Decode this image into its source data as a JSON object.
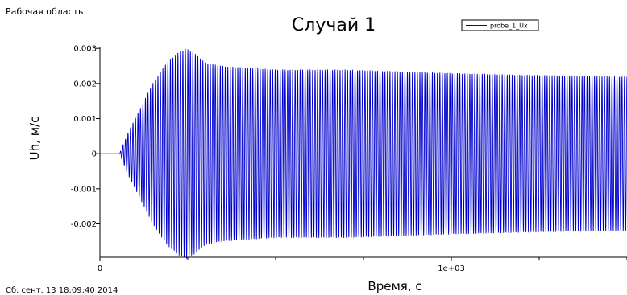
{
  "workspace_label": "Рабочая область",
  "timestamp": "Сб. сент. 13 18:09:40 2014",
  "colors": {
    "series": "#0000cc",
    "axis": "#000000"
  },
  "chart_data": {
    "type": "line",
    "title": "Случай 1",
    "xlabel": "Время, с",
    "ylabel": "Uh, м/с",
    "xlim": [
      0,
      1500
    ],
    "ylim": [
      -0.00295,
      0.00305
    ],
    "x_ticks": [
      {
        "value": 0,
        "label": "0"
      },
      {
        "value": 1000,
        "label": "1e+03"
      }
    ],
    "y_ticks": [
      {
        "value": 0.003,
        "label": "0.003"
      },
      {
        "value": 0.002,
        "label": "0.002"
      },
      {
        "value": 0.001,
        "label": "0.001"
      },
      {
        "value": 0,
        "label": "0"
      },
      {
        "value": -0.001,
        "label": "-0.001"
      },
      {
        "value": -0.002,
        "label": "-0.002"
      }
    ],
    "legend": {
      "position": "top-right"
    },
    "series": [
      {
        "name": "probe_1_Ux",
        "color": "#0000cc",
        "oscillation_period": 7.1,
        "envelope": [
          {
            "x": 0,
            "amp": 0
          },
          {
            "x": 55,
            "amp": 0
          },
          {
            "x": 60,
            "amp": 0.0001
          },
          {
            "x": 80,
            "amp": 0.0006
          },
          {
            "x": 110,
            "amp": 0.0012
          },
          {
            "x": 150,
            "amp": 0.002
          },
          {
            "x": 190,
            "amp": 0.0026
          },
          {
            "x": 225,
            "amp": 0.0029
          },
          {
            "x": 245,
            "amp": 0.003
          },
          {
            "x": 265,
            "amp": 0.0029
          },
          {
            "x": 300,
            "amp": 0.0026
          },
          {
            "x": 350,
            "amp": 0.0025
          },
          {
            "x": 500,
            "amp": 0.0024
          },
          {
            "x": 700,
            "amp": 0.0024
          },
          {
            "x": 1000,
            "amp": 0.0023
          },
          {
            "x": 1200,
            "amp": 0.00225
          },
          {
            "x": 1500,
            "amp": 0.0022
          }
        ]
      }
    ]
  }
}
